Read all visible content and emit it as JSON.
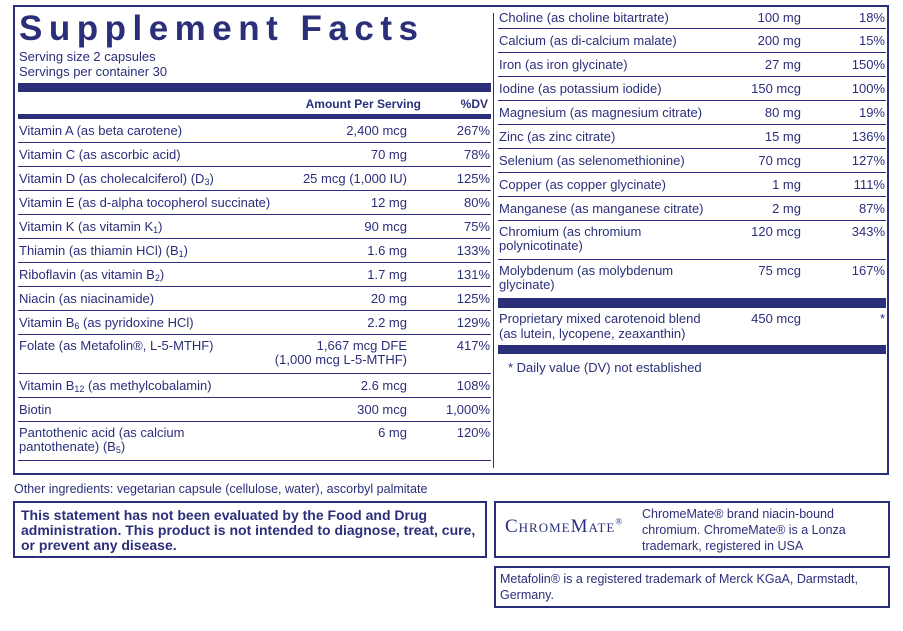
{
  "title": "Supplement Facts",
  "serving_size": "Serving size  2 capsules",
  "servings_per_container": "Servings per container  30",
  "column_headers": {
    "amount": "Amount Per Serving",
    "dv": "%DV"
  },
  "left_rows": [
    {
      "name": "Vitamin A (as beta carotene)",
      "amount": "2,400 mcg",
      "dv": "267%"
    },
    {
      "name": "Vitamin C (as ascorbic acid)",
      "amount": "70 mg",
      "dv": "78%"
    },
    {
      "name": "Vitamin D (as cholecalciferol) (D",
      "sub": "3",
      "tail": ")",
      "amount": "25 mcg (1,000 IU)",
      "dv": "125%"
    },
    {
      "name": "Vitamin E (as d-alpha tocopherol succinate)",
      "amount": "12 mg",
      "dv": "80%"
    },
    {
      "name": "Vitamin K (as vitamin K",
      "sub": "1",
      "tail": ")",
      "amount": "90 mcg",
      "dv": "75%"
    },
    {
      "name": "Thiamin (as thiamin HCl) (B",
      "sub": "1",
      "tail": ")",
      "amount": "1.6 mg",
      "dv": "133%"
    },
    {
      "name": "Riboflavin (as vitamin B",
      "sub": "2",
      "tail": ")",
      "amount": "1.7 mg",
      "dv": "131%"
    },
    {
      "name": "Niacin (as niacinamide)",
      "amount": "20 mg",
      "dv": "125%"
    },
    {
      "name": "Vitamin B",
      "sub": "6",
      "tail": " (as pyridoxine HCl)",
      "amount": "2.2 mg",
      "dv": "129%"
    },
    {
      "name": "Folate (as Metafolin®, L-5-MTHF)",
      "amount": "1,667 mcg DFE",
      "amount2": "(1,000 mcg L-5-MTHF)",
      "dv": "417%"
    },
    {
      "name": "Vitamin B",
      "sub": "12",
      "tail": " (as methylcobalamin)",
      "amount": "2.6 mcg",
      "dv": "108%"
    },
    {
      "name": "Biotin",
      "amount": "300 mcg",
      "dv": "1,000%"
    },
    {
      "name": "Pantothenic acid (as calcium",
      "name2": "pantothenate) (B",
      "sub": "5",
      "tail": ")",
      "amount": "6 mg",
      "dv": "120%"
    }
  ],
  "right_rows": [
    {
      "name": "Choline (as choline bitartrate)",
      "amount": "100 mg",
      "dv": "18%"
    },
    {
      "name": "Calcium (as di-calcium malate)",
      "amount": "200 mg",
      "dv": "15%"
    },
    {
      "name": "Iron (as iron glycinate)",
      "amount": "27 mg",
      "dv": "150%"
    },
    {
      "name": "Iodine (as potassium iodide)",
      "amount": "150 mcg",
      "dv": "100%"
    },
    {
      "name": "Magnesium (as magnesium citrate)",
      "amount": "80 mg",
      "dv": "19%"
    },
    {
      "name": "Zinc (as zinc citrate)",
      "amount": "15 mg",
      "dv": "136%"
    },
    {
      "name": "Selenium (as selenomethionine)",
      "amount": "70 mcg",
      "dv": "127%"
    },
    {
      "name": "Copper (as copper glycinate)",
      "amount": "1 mg",
      "dv": "111%"
    },
    {
      "name": "Manganese (as manganese citrate)",
      "amount": "2 mg",
      "dv": "87%"
    },
    {
      "name": "Chromium (as chromium",
      "name2": "polynicotinate)",
      "amount": "120 mcg",
      "dv": "343%"
    },
    {
      "name": "Molybdenum (as molybdenum",
      "name2": "glycinate)",
      "amount": "75 mcg",
      "dv": "167%"
    }
  ],
  "blend": {
    "name": "Proprietary mixed carotenoid blend",
    "name2": "(as lutein, lycopene, zeaxanthin)",
    "amount": "450 mcg",
    "dv": "*"
  },
  "footnote": "*  Daily value (DV) not established",
  "other_ingredients": "Other ingredients: vegetarian capsule (cellulose, water), ascorbyl palmitate",
  "fda_statement": "This statement has not been evaluated by the Food and Drug administration. This product is not intended to diagnose, treat, cure, or prevent any disease.",
  "chromemate_logo": "ChromeMate",
  "chromemate_note": "ChromeMate® brand niacin-bound chromium. ChromeMate® is a Lonza trademark, registered in USA",
  "metafolin_note": "Metafolin® is a registered trademark of Merck KGaA, Darmstadt, Germany.",
  "colors": {
    "navy": "#2b2f7a"
  }
}
